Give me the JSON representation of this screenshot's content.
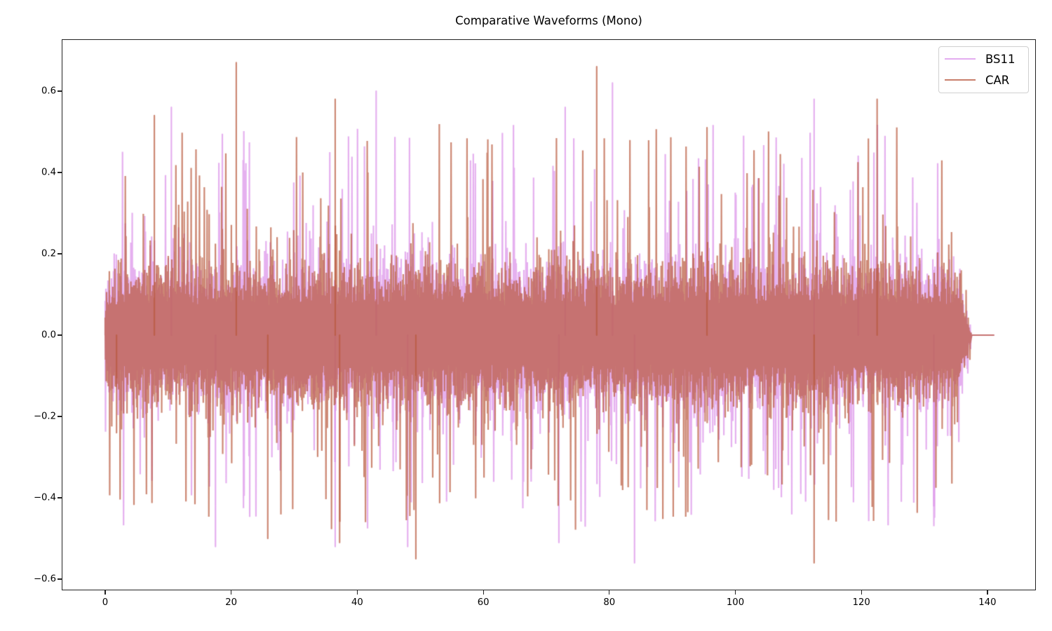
{
  "chart_data": {
    "type": "line",
    "title": "Comparative Waveforms (Mono)",
    "xlabel": "",
    "ylabel": "",
    "xlim": [
      -7,
      148
    ],
    "ylim": [
      -0.62,
      0.73
    ],
    "grid": false,
    "legend_position": "upper right",
    "x_ticks": [
      0,
      20,
      40,
      60,
      80,
      100,
      120,
      140
    ],
    "x_tick_labels": [
      "0",
      "20",
      "40",
      "60",
      "80",
      "100",
      "120",
      "140"
    ],
    "y_ticks": [
      0.6,
      0.4,
      0.2,
      0.0,
      -0.2,
      -0.4,
      -0.6
    ],
    "y_tick_labels": [
      "0.6",
      "0.4",
      "0.2",
      "0.0",
      "−0.2",
      "−0.4",
      "−0.6"
    ],
    "signal_start_s": 0.0,
    "signal_end_s": 137.5,
    "flat_until_s": 141.0,
    "series": [
      {
        "name": "BS11",
        "color": "#da8ee8",
        "alpha": 0.7,
        "typical_envelope": 0.2,
        "max_peak": 0.62,
        "min_peak": -0.56,
        "notable_peaks": [
          {
            "x": 43.0,
            "y": 0.6
          },
          {
            "x": 80.5,
            "y": 0.62
          },
          {
            "x": 73.0,
            "y": 0.56
          },
          {
            "x": 10.5,
            "y": 0.56
          },
          {
            "x": 112.5,
            "y": 0.58
          },
          {
            "x": 119.5,
            "y": 0.44
          },
          {
            "x": 84.0,
            "y": -0.56
          },
          {
            "x": 17.5,
            "y": -0.52
          },
          {
            "x": 48.0,
            "y": -0.52
          },
          {
            "x": 72.0,
            "y": -0.51
          },
          {
            "x": 36.5,
            "y": -0.52
          },
          {
            "x": 131.5,
            "y": -0.42
          }
        ]
      },
      {
        "name": "CAR",
        "color": "#b8573a",
        "alpha": 0.7,
        "typical_envelope": 0.2,
        "max_peak": 0.67,
        "min_peak": -0.56,
        "notable_peaks": [
          {
            "x": 20.8,
            "y": 0.67
          },
          {
            "x": 78.0,
            "y": 0.66
          },
          {
            "x": 36.5,
            "y": 0.58
          },
          {
            "x": 122.5,
            "y": 0.58
          },
          {
            "x": 7.8,
            "y": 0.54
          },
          {
            "x": 95.5,
            "y": 0.51
          },
          {
            "x": 49.3,
            "y": -0.55
          },
          {
            "x": 112.5,
            "y": -0.56
          },
          {
            "x": 25.8,
            "y": -0.5
          },
          {
            "x": 37.2,
            "y": -0.51
          },
          {
            "x": 1.8,
            "y": -0.24
          }
        ]
      }
    ]
  },
  "legend": {
    "items": [
      {
        "label": "BS11",
        "color": "#e3acf0"
      },
      {
        "label": "CAR",
        "color": "#c97f6b"
      }
    ]
  }
}
